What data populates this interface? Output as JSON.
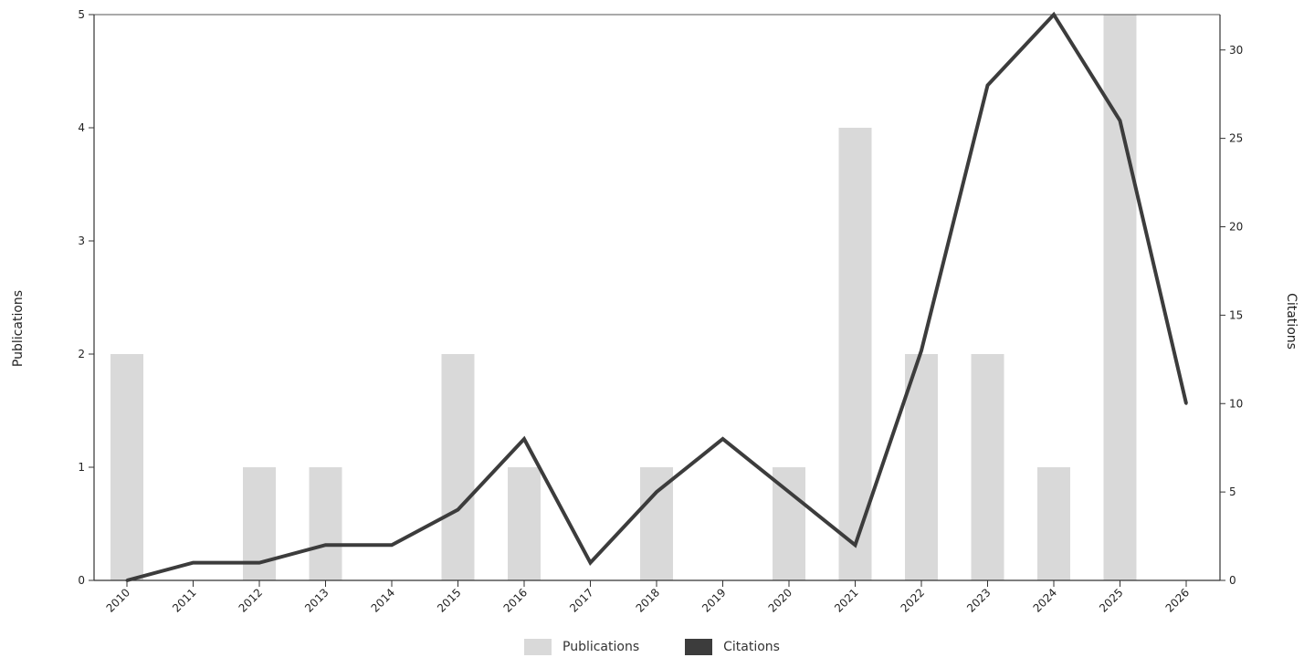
{
  "chart_data": {
    "type": "bar",
    "categories": [
      "2010",
      "2011",
      "2012",
      "2013",
      "2014",
      "2015",
      "2016",
      "2017",
      "2018",
      "2019",
      "2020",
      "2021",
      "2022",
      "2023",
      "2024",
      "2025",
      "2026"
    ],
    "series": [
      {
        "name": "Publications",
        "type": "bar",
        "axis": "left",
        "values": [
          2,
          0,
          1,
          1,
          0,
          2,
          1,
          0,
          1,
          0,
          1,
          4,
          2,
          2,
          1,
          5,
          0
        ],
        "color": "#d9d9d9"
      },
      {
        "name": "Citations",
        "type": "line",
        "axis": "right",
        "values": [
          0,
          1,
          1,
          2,
          2,
          4,
          8,
          1,
          5,
          8,
          5,
          2,
          13,
          28,
          32,
          26,
          10
        ],
        "color": "#3c3c3c"
      }
    ],
    "xlabel": "",
    "ylabel": "Publications",
    "ylabel_right": "Citations",
    "ylim": [
      0,
      5
    ],
    "ylim_right": [
      0,
      32
    ],
    "yticks": [
      0,
      1,
      2,
      3,
      4,
      5
    ],
    "yticks_right": [
      0,
      5,
      10,
      15,
      20,
      25,
      30
    ],
    "legend_position": "bottom-center",
    "grid": false
  }
}
